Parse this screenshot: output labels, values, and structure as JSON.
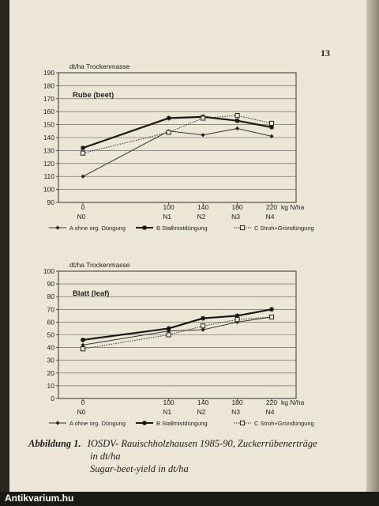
{
  "page": {
    "number": "13",
    "caption_label": "Abbildung 1.",
    "caption_line1": "IOSDV- Rauischholzhausen 1985-90, Zuckerrübenerträge",
    "caption_line2": "in dt/ha",
    "caption_line3": "Sugar-beet-yield in dt/ha"
  },
  "watermark": "Antikvarium.hu",
  "chart_data": [
    {
      "type": "line",
      "title": "Rube (beet)",
      "ylabel": "dt/ha Trockenmasse",
      "xlabel": "kg N/ha",
      "x": [
        0,
        100,
        140,
        180,
        220
      ],
      "x_tick_labels": [
        "0",
        "100",
        "140",
        "180",
        "220"
      ],
      "x_level_labels": [
        "N0",
        "N1",
        "N2",
        "N3",
        "N4"
      ],
      "ylim": [
        90,
        190
      ],
      "y_ticks": [
        90,
        100,
        110,
        120,
        130,
        140,
        150,
        160,
        170,
        180,
        190
      ],
      "grid": true,
      "legend_position": "bottom",
      "series": [
        {
          "name": "A ohne org. Düngung",
          "values": [
            110,
            145,
            142,
            147,
            141
          ],
          "marker": "diamond",
          "style": "thin",
          "color": "#333333"
        },
        {
          "name": "B Stallmistdüngung",
          "values": [
            132,
            155,
            156,
            153,
            148
          ],
          "marker": "star",
          "style": "bold",
          "color": "#1a1a1a"
        },
        {
          "name": "C Stroh+Gründüngung",
          "values": [
            128,
            144,
            155,
            157,
            151
          ],
          "marker": "square",
          "style": "dotted",
          "color": "#333333"
        }
      ]
    },
    {
      "type": "line",
      "title": "Blatt (leaf)",
      "ylabel": "dt/ha Trockenmasse",
      "xlabel": "kg N/ha",
      "x": [
        0,
        100,
        140,
        180,
        220
      ],
      "x_tick_labels": [
        "0",
        "100",
        "140",
        "180",
        "220"
      ],
      "x_level_labels": [
        "N0",
        "N1",
        "N2",
        "N3",
        "N4"
      ],
      "ylim": [
        0,
        100
      ],
      "y_ticks": [
        0,
        10,
        20,
        30,
        40,
        50,
        60,
        70,
        80,
        90,
        100
      ],
      "grid": true,
      "legend_position": "bottom",
      "series": [
        {
          "name": "A ohne org. Düngung",
          "values": [
            42,
            53,
            54,
            60,
            64
          ],
          "marker": "diamond",
          "style": "thin",
          "color": "#333333"
        },
        {
          "name": "B Stallmistdüngung",
          "values": [
            46,
            55,
            63,
            65,
            70
          ],
          "marker": "star",
          "style": "bold",
          "color": "#1a1a1a"
        },
        {
          "name": "C Stroh+Gründüngung",
          "values": [
            39,
            50,
            57,
            62,
            64
          ],
          "marker": "square",
          "style": "dotted",
          "color": "#333333"
        }
      ]
    }
  ]
}
